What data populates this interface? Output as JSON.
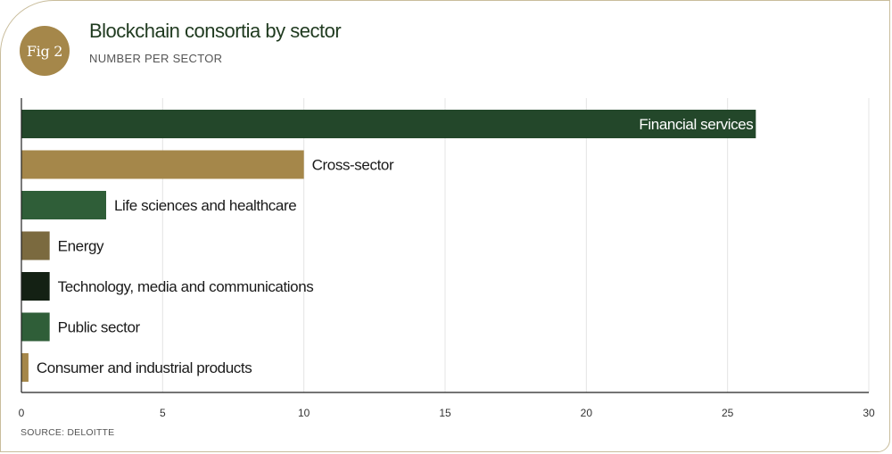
{
  "badge": "Fig 2",
  "title": "Blockchain consortia by sector",
  "subtitle": "NUMBER PER SECTOR",
  "source": "SOURCE: DELOITTE",
  "colors": {
    "dark_green": "#23472a",
    "mid_green": "#2f5e38",
    "gold": "#a5874a",
    "brown": "#7b6a3f",
    "black_green": "#142114"
  },
  "chart_data": {
    "type": "bar",
    "orientation": "horizontal",
    "title": "Blockchain consortia by sector",
    "subtitle": "NUMBER PER SECTOR",
    "xlim": [
      0,
      30
    ],
    "xticks": [
      0,
      5,
      10,
      15,
      20,
      25,
      30
    ],
    "grid": true,
    "categories": [
      "Financial services",
      "Cross-sector",
      "Life sciences and healthcare",
      "Energy",
      "Technology, media and communications",
      "Public sector",
      "Consumer and industrial products"
    ],
    "values": [
      26,
      10,
      3,
      1,
      1,
      1,
      0.25
    ],
    "bar_colors": [
      "#23472a",
      "#a5874a",
      "#2f5e38",
      "#7b6a3f",
      "#142114",
      "#2f5e38",
      "#a5874a"
    ]
  }
}
